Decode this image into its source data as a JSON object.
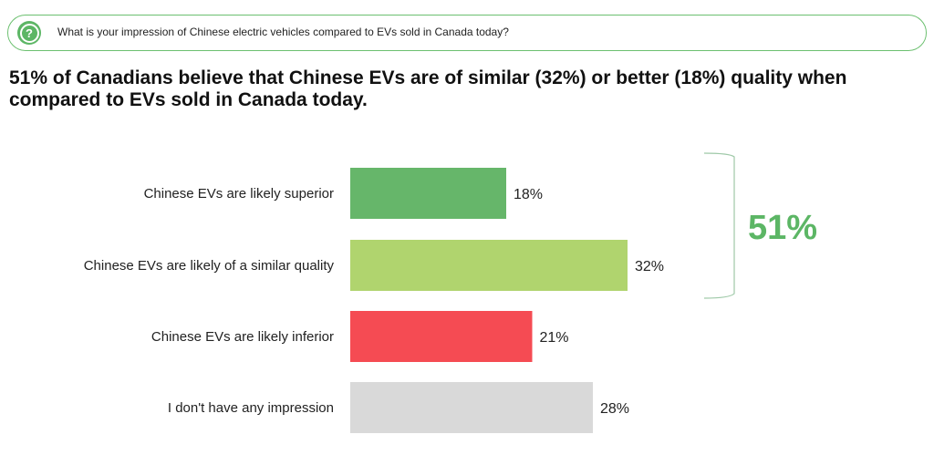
{
  "question": {
    "icon": "question-bubble-icon",
    "text": "What is your impression of Chinese electric vehicles compared to EVs sold in Canada today?"
  },
  "headline": "51% of Canadians believe that Chinese EVs are of similar (32%) or better (18%) quality when compared to EVs sold in Canada today.",
  "chart_data": {
    "type": "bar",
    "orientation": "horizontal",
    "categories": [
      "Chinese EVs are likely superior",
      "Chinese EVs are likely of a similar quality",
      "Chinese EVs are likely inferior",
      "I don't have any impression"
    ],
    "values": [
      18,
      32,
      21,
      28
    ],
    "value_labels": [
      "18%",
      "32%",
      "21%",
      "28%"
    ],
    "colors": [
      "#66b66a",
      "#b0d46e",
      "#f54b53",
      "#d9d9d9"
    ],
    "bracket_total": {
      "label": "51%",
      "groups": [
        0,
        1
      ],
      "color": "#5cb665"
    },
    "grid": false
  }
}
